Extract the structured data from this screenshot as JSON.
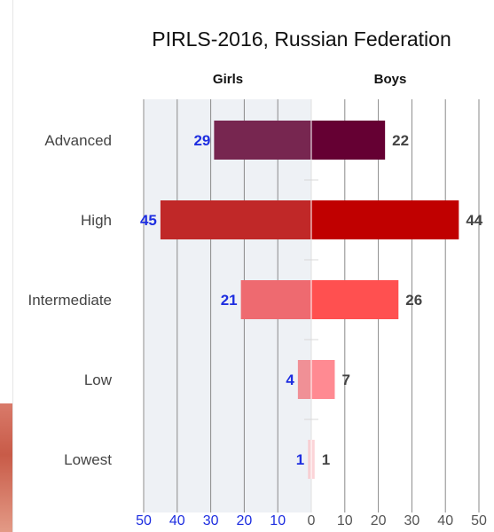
{
  "chart_data": {
    "type": "bar",
    "orientation": "horizontal-butterfly",
    "title": "PIRLS-2016, Russian Federation",
    "categories": [
      "Advanced",
      "High",
      "Intermediate",
      "Low",
      "Lowest"
    ],
    "series": [
      {
        "name": "Girls",
        "values": [
          29,
          45,
          21,
          4,
          1
        ],
        "colors": [
          "#772650",
          "#c02828",
          "#ee6a70",
          "#f09096",
          "#f7cfd3"
        ]
      },
      {
        "name": "Boys",
        "values": [
          22,
          44,
          26,
          7,
          1
        ],
        "colors": [
          "#650033",
          "#c00000",
          "#ff5050",
          "#ff8a92",
          "#fcd4d8"
        ]
      }
    ],
    "x_ticks_left": [
      "50",
      "40",
      "30",
      "20",
      "10"
    ],
    "x_ticks_right": [
      "0",
      "10",
      "20",
      "30",
      "40",
      "50"
    ],
    "xlim": [
      0,
      50
    ],
    "grid": true
  },
  "styles": {
    "girls_panel_bg": "#eef1f5",
    "grid_color": "#8a8a8a",
    "girls_label_color": "#1e2ee0",
    "boys_label_color": "#444444"
  }
}
